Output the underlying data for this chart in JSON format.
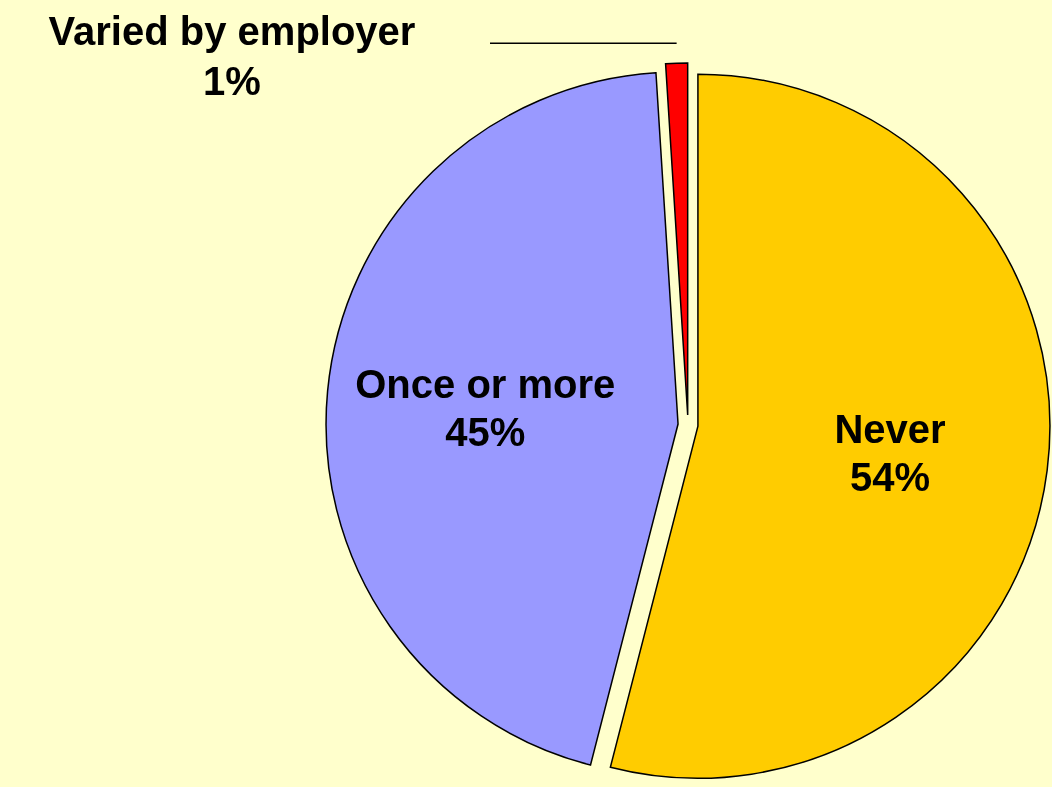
{
  "chart_data": {
    "type": "pie",
    "categories": [
      "Never",
      "Once or more",
      "Varied by employer"
    ],
    "values": [
      54,
      45,
      1
    ],
    "colors": [
      "#ffcc00",
      "#9999ff",
      "#ff0000"
    ],
    "value_labels": [
      "54%",
      "45%",
      "1%"
    ]
  }
}
